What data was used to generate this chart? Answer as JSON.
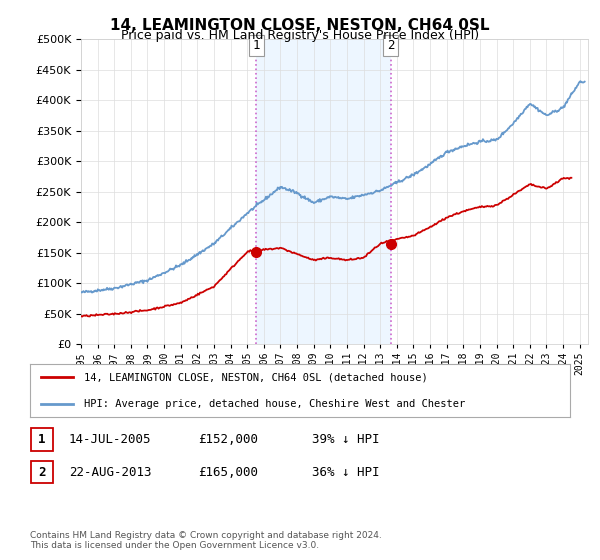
{
  "title": "14, LEAMINGTON CLOSE, NESTON, CH64 0SL",
  "subtitle": "Price paid vs. HM Land Registry's House Price Index (HPI)",
  "ytick_values": [
    0,
    50000,
    100000,
    150000,
    200000,
    250000,
    300000,
    350000,
    400000,
    450000,
    500000
  ],
  "ylim": [
    0,
    500000
  ],
  "xlim_start": 1995.0,
  "xlim_end": 2025.5,
  "hpi_color": "#6699cc",
  "price_color": "#cc0000",
  "sale1_x": 2005.54,
  "sale1_y": 152000,
  "sale2_x": 2013.64,
  "sale2_y": 165000,
  "vline_color": "#cc66cc",
  "legend_label_price": "14, LEAMINGTON CLOSE, NESTON, CH64 0SL (detached house)",
  "legend_label_hpi": "HPI: Average price, detached house, Cheshire West and Chester",
  "table_row1": [
    "1",
    "14-JUL-2005",
    "£152,000",
    "39% ↓ HPI"
  ],
  "table_row2": [
    "2",
    "22-AUG-2013",
    "£165,000",
    "36% ↓ HPI"
  ],
  "footnote": "Contains HM Land Registry data © Crown copyright and database right 2024.\nThis data is licensed under the Open Government Licence v3.0.",
  "background_color": "#ffffff",
  "grid_color": "#dddddd",
  "xtick_years": [
    1995,
    1996,
    1997,
    1998,
    1999,
    2000,
    2001,
    2002,
    2003,
    2004,
    2005,
    2006,
    2007,
    2008,
    2009,
    2010,
    2011,
    2012,
    2013,
    2014,
    2015,
    2016,
    2017,
    2018,
    2019,
    2020,
    2021,
    2022,
    2023,
    2024,
    2025
  ],
  "hpi_anchors_x": [
    1995,
    1997,
    1999,
    2001,
    2003,
    2005,
    2007,
    2008,
    2009,
    2010,
    2011,
    2012,
    2013,
    2014,
    2015,
    2016,
    2017,
    2018,
    2019,
    2020,
    2021,
    2022,
    2023,
    2024,
    2025
  ],
  "hpi_anchors_y": [
    85000,
    92000,
    105000,
    130000,
    165000,
    215000,
    258000,
    248000,
    232000,
    242000,
    238000,
    245000,
    252000,
    265000,
    278000,
    295000,
    315000,
    325000,
    332000,
    335000,
    362000,
    395000,
    375000,
    388000,
    430000
  ],
  "price_anchors_x": [
    1995,
    1997,
    1999,
    2001,
    2003,
    2005,
    2007,
    2008,
    2009,
    2010,
    2011,
    2012,
    2013,
    2014,
    2015,
    2016,
    2017,
    2018,
    2019,
    2020,
    2021,
    2022,
    2023,
    2024
  ],
  "price_anchors_y": [
    46000,
    50000,
    56000,
    68000,
    95000,
    152000,
    158000,
    148000,
    138000,
    142000,
    138000,
    142000,
    165000,
    172000,
    178000,
    192000,
    208000,
    218000,
    225000,
    228000,
    245000,
    262000,
    255000,
    272000
  ]
}
